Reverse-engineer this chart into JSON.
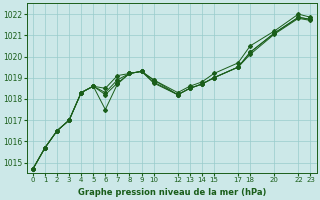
{
  "title": "Graphe pression niveau de la mer (hPa)",
  "bg_color": "#cce8e8",
  "grid_color": "#99cccc",
  "line_color": "#1a5e1a",
  "marker_color": "#1a5e1a",
  "ylim": [
    1014.5,
    1022.5
  ],
  "yticks": [
    1015,
    1016,
    1017,
    1018,
    1019,
    1020,
    1021,
    1022
  ],
  "xlim": [
    -0.5,
    23.5
  ],
  "xtick_positions": [
    0,
    1,
    2,
    3,
    4,
    5,
    6,
    7,
    8,
    9,
    10,
    12,
    13,
    14,
    15,
    17,
    18,
    20,
    22,
    23
  ],
  "xtick_labels": [
    "0",
    "1",
    "2",
    "3",
    "4",
    "5",
    "6",
    "7",
    "8",
    "9",
    "10",
    "12",
    "13",
    "14",
    "15",
    "17",
    "18",
    "20",
    "22",
    "23"
  ],
  "hours": [
    0,
    1,
    2,
    3,
    4,
    5,
    6,
    7,
    8,
    9,
    10,
    12,
    13,
    14,
    15,
    17,
    18,
    20,
    22,
    23
  ],
  "series1": [
    1014.7,
    1015.7,
    1016.5,
    1017.0,
    1018.3,
    1018.6,
    1017.5,
    1018.7,
    1019.2,
    1019.3,
    1018.9,
    1018.3,
    1018.6,
    1018.8,
    1019.2,
    1019.7,
    1020.5,
    1021.2,
    1022.0,
    1021.85
  ],
  "series2": [
    1014.7,
    1015.7,
    1016.5,
    1017.0,
    1018.3,
    1018.6,
    1018.5,
    1019.1,
    1019.2,
    1019.3,
    1018.9,
    1018.2,
    1018.5,
    1018.7,
    1019.0,
    1019.5,
    1020.2,
    1021.1,
    1021.85,
    1021.75
  ],
  "series3": [
    1014.7,
    1015.7,
    1016.5,
    1017.0,
    1018.3,
    1018.6,
    1018.3,
    1018.9,
    1019.2,
    1019.3,
    1018.8,
    1018.2,
    1018.5,
    1018.7,
    1019.0,
    1019.5,
    1020.2,
    1021.1,
    1021.85,
    1021.75
  ],
  "series4": [
    1014.7,
    1015.7,
    1016.5,
    1017.0,
    1018.3,
    1018.6,
    1018.2,
    1018.75,
    1019.2,
    1019.3,
    1018.75,
    1018.2,
    1018.5,
    1018.7,
    1019.0,
    1019.5,
    1020.1,
    1021.05,
    1021.8,
    1021.7
  ]
}
